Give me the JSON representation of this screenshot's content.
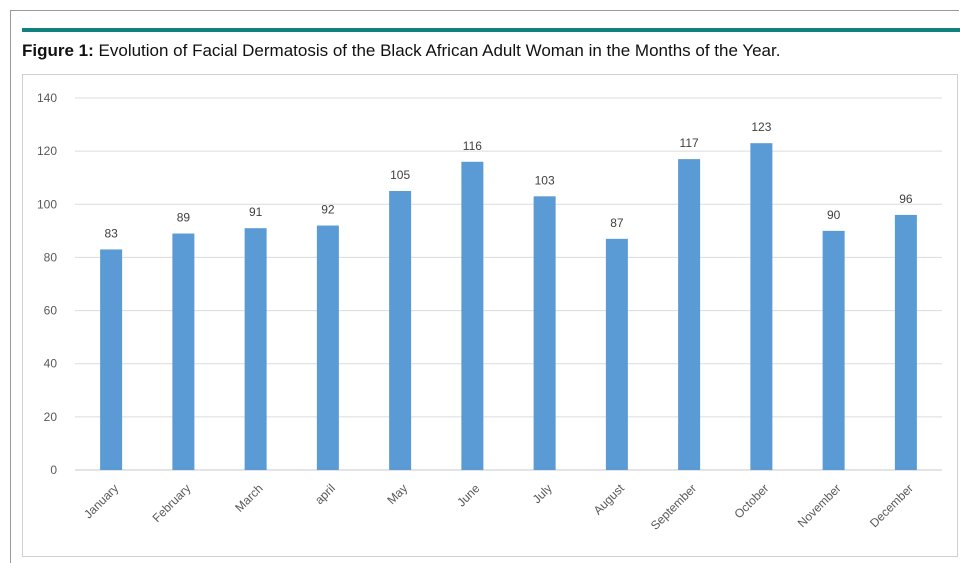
{
  "figure": {
    "label": "Figure 1:",
    "caption": " Evolution of Facial Dermatosis of the Black African Adult Woman in the Months of the Year."
  },
  "chart_data": {
    "type": "bar",
    "title": "",
    "xlabel": "",
    "ylabel": "",
    "categories": [
      "January",
      "February",
      "March",
      "april",
      "May",
      "June",
      "July",
      "August",
      "September",
      "October",
      "November",
      "December"
    ],
    "values": [
      83,
      89,
      91,
      92,
      105,
      116,
      103,
      87,
      117,
      123,
      90,
      96
    ],
    "ylim": [
      0,
      140
    ],
    "yticks": [
      0,
      20,
      40,
      60,
      80,
      100,
      120,
      140
    ],
    "grid": true,
    "legend": "none",
    "bar_color": "#5b9bd5",
    "data_labels": true
  }
}
